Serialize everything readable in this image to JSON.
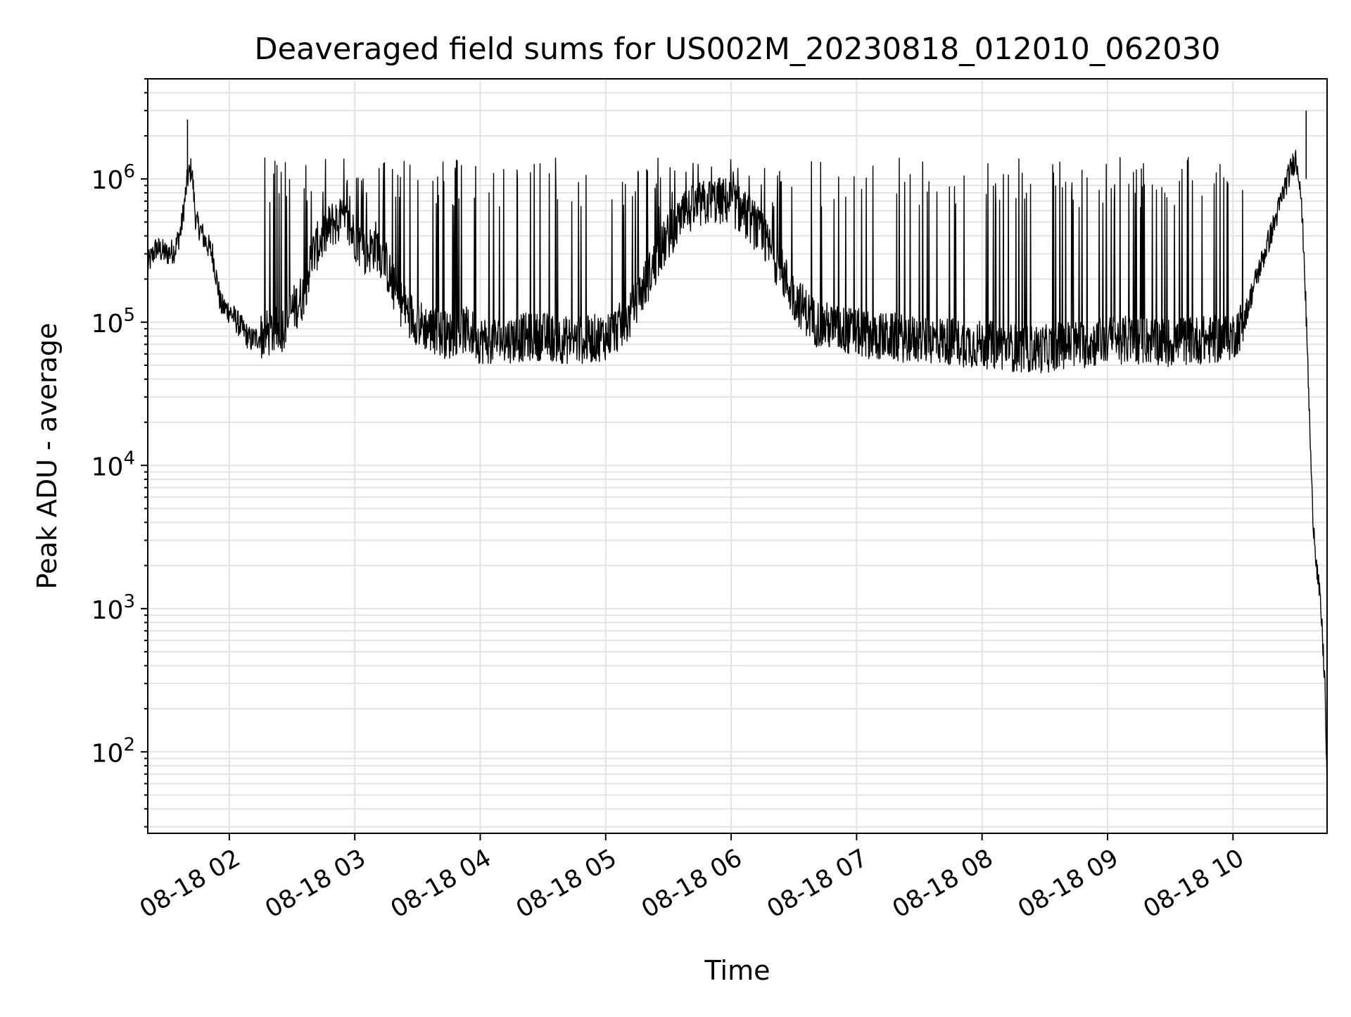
{
  "chart_data": {
    "type": "line",
    "title": "Deaveraged field sums for US002M_20230818_012010_062030",
    "xlabel": "Time",
    "ylabel": "Peak ADU - average",
    "yscale": "log",
    "ylim": [
      27,
      5000000
    ],
    "xlim": [
      "2023-08-18 01:21:00",
      "2023-08-18 10:45:00"
    ],
    "grid": "both",
    "line_color": "#000000",
    "x_ticks": [
      {
        "value": "2023-08-18 02:00",
        "label": "08-18 02"
      },
      {
        "value": "2023-08-18 03:00",
        "label": "08-18 03"
      },
      {
        "value": "2023-08-18 04:00",
        "label": "08-18 04"
      },
      {
        "value": "2023-08-18 05:00",
        "label": "08-18 05"
      },
      {
        "value": "2023-08-18 06:00",
        "label": "08-18 06"
      },
      {
        "value": "2023-08-18 07:00",
        "label": "08-18 07"
      },
      {
        "value": "2023-08-18 08:00",
        "label": "08-18 08"
      },
      {
        "value": "2023-08-18 09:00",
        "label": "08-18 09"
      },
      {
        "value": "2023-08-18 10:00",
        "label": "08-18 10"
      }
    ],
    "y_ticks": [
      {
        "value": 100,
        "base": "10",
        "exp": "2"
      },
      {
        "value": 1000,
        "base": "10",
        "exp": "3"
      },
      {
        "value": 10000,
        "base": "10",
        "exp": "4"
      },
      {
        "value": 100000,
        "base": "10",
        "exp": "5"
      },
      {
        "value": 1000000,
        "base": "10",
        "exp": "6"
      }
    ],
    "x": [
      "2023-08-18 01:21",
      "2023-08-18 01:25",
      "2023-08-18 01:30",
      "2023-08-18 01:34",
      "2023-08-18 01:37",
      "2023-08-18 01:40",
      "2023-08-18 01:42",
      "2023-08-18 01:44",
      "2023-08-18 01:46",
      "2023-08-18 01:48",
      "2023-08-18 01:52",
      "2023-08-18 01:56",
      "2023-08-18 02:00",
      "2023-08-18 02:05",
      "2023-08-18 02:10",
      "2023-08-18 02:15",
      "2023-08-18 02:20",
      "2023-08-18 02:25",
      "2023-08-18 02:30",
      "2023-08-18 02:35",
      "2023-08-18 02:40",
      "2023-08-18 02:45",
      "2023-08-18 02:50",
      "2023-08-18 02:55",
      "2023-08-18 03:00",
      "2023-08-18 03:05",
      "2023-08-18 03:10",
      "2023-08-18 03:15",
      "2023-08-18 03:20",
      "2023-08-18 03:25",
      "2023-08-18 03:30",
      "2023-08-18 03:35",
      "2023-08-18 03:40",
      "2023-08-18 03:45",
      "2023-08-18 03:50",
      "2023-08-18 03:55",
      "2023-08-18 04:00",
      "2023-08-18 04:10",
      "2023-08-18 04:20",
      "2023-08-18 04:30",
      "2023-08-18 04:40",
      "2023-08-18 04:50",
      "2023-08-18 05:00",
      "2023-08-18 05:10",
      "2023-08-18 05:20",
      "2023-08-18 05:30",
      "2023-08-18 05:40",
      "2023-08-18 05:50",
      "2023-08-18 06:00",
      "2023-08-18 06:10",
      "2023-08-18 06:20",
      "2023-08-18 06:30",
      "2023-08-18 06:40",
      "2023-08-18 06:50",
      "2023-08-18 07:00",
      "2023-08-18 07:10",
      "2023-08-18 07:20",
      "2023-08-18 07:30",
      "2023-08-18 07:40",
      "2023-08-18 07:50",
      "2023-08-18 08:00",
      "2023-08-18 08:10",
      "2023-08-18 08:20",
      "2023-08-18 08:30",
      "2023-08-18 08:40",
      "2023-08-18 08:50",
      "2023-08-18 09:00",
      "2023-08-18 09:10",
      "2023-08-18 09:20",
      "2023-08-18 09:30",
      "2023-08-18 09:40",
      "2023-08-18 09:50",
      "2023-08-18 10:00",
      "2023-08-18 10:05",
      "2023-08-18 10:10",
      "2023-08-18 10:15",
      "2023-08-18 10:20",
      "2023-08-18 10:25",
      "2023-08-18 10:28",
      "2023-08-18 10:30",
      "2023-08-18 10:32",
      "2023-08-18 10:34",
      "2023-08-18 10:36",
      "2023-08-18 10:38",
      "2023-08-18 10:40",
      "2023-08-18 10:42",
      "2023-08-18 10:44",
      "2023-08-18 10:45"
    ],
    "values": [
      250000,
      330000,
      300000,
      320000,
      450000,
      1000000,
      1200000,
      500000,
      450000,
      380000,
      300000,
      130000,
      120000,
      95000,
      75000,
      80000,
      85000,
      90000,
      120000,
      150000,
      300000,
      400000,
      500000,
      500000,
      400000,
      300000,
      350000,
      250000,
      150000,
      120000,
      100000,
      90000,
      85000,
      80000,
      90000,
      85000,
      75000,
      75000,
      78000,
      80000,
      75000,
      75000,
      80000,
      100000,
      200000,
      400000,
      600000,
      700000,
      700000,
      500000,
      300000,
      150000,
      100000,
      90000,
      85000,
      80000,
      78000,
      75000,
      75000,
      72000,
      70000,
      68000,
      65000,
      65000,
      70000,
      70000,
      75000,
      75000,
      75000,
      72000,
      75000,
      75000,
      80000,
      100000,
      180000,
      300000,
      500000,
      900000,
      1200000,
      1400000,
      1000000,
      300000,
      40000,
      5000,
      2000,
      1000,
      300,
      50
    ],
    "spikes": [
      {
        "x": "2023-08-18 01:40",
        "value": 2600000
      },
      {
        "x": "2023-08-18 10:35",
        "value": 3000000
      }
    ]
  }
}
